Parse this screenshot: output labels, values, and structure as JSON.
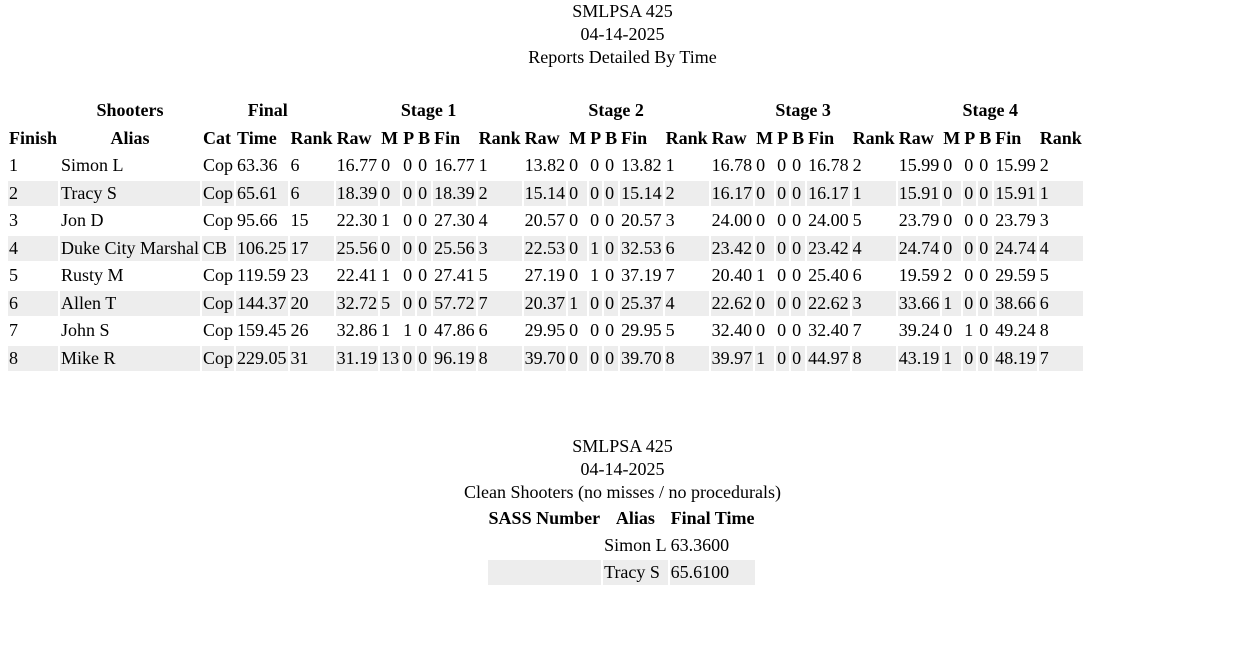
{
  "report": {
    "title": "SMLPSA 425",
    "date": "04-14-2025",
    "subtitle": "Reports Detailed By Time"
  },
  "results_table": {
    "group_headers": {
      "shooters": "Shooters",
      "final": "Final",
      "stages": [
        "Stage 1",
        "Stage 2",
        "Stage 3",
        "Stage 4"
      ]
    },
    "columns": {
      "finish": "Finish",
      "alias": "Alias",
      "cat": "Cat",
      "time": "Time",
      "rank": "Rank",
      "stage": [
        "Raw",
        "M",
        "P",
        "B",
        "Fin",
        "Rank"
      ]
    },
    "rows": [
      {
        "finish": "1",
        "alias": "Simon L",
        "cat": "Cop",
        "time": "63.36",
        "rank": "6",
        "stages": [
          [
            "16.77",
            "0",
            "0",
            "0",
            "16.77",
            "1"
          ],
          [
            "13.82",
            "0",
            "0",
            "0",
            "13.82",
            "1"
          ],
          [
            "16.78",
            "0",
            "0",
            "0",
            "16.78",
            "2"
          ],
          [
            "15.99",
            "0",
            "0",
            "0",
            "15.99",
            "2"
          ]
        ]
      },
      {
        "finish": "2",
        "alias": "Tracy S",
        "cat": "Cop",
        "time": "65.61",
        "rank": "6",
        "stages": [
          [
            "18.39",
            "0",
            "0",
            "0",
            "18.39",
            "2"
          ],
          [
            "15.14",
            "0",
            "0",
            "0",
            "15.14",
            "2"
          ],
          [
            "16.17",
            "0",
            "0",
            "0",
            "16.17",
            "1"
          ],
          [
            "15.91",
            "0",
            "0",
            "0",
            "15.91",
            "1"
          ]
        ]
      },
      {
        "finish": "3",
        "alias": "Jon D",
        "cat": "Cop",
        "time": "95.66",
        "rank": "15",
        "stages": [
          [
            "22.30",
            "1",
            "0",
            "0",
            "27.30",
            "4"
          ],
          [
            "20.57",
            "0",
            "0",
            "0",
            "20.57",
            "3"
          ],
          [
            "24.00",
            "0",
            "0",
            "0",
            "24.00",
            "5"
          ],
          [
            "23.79",
            "0",
            "0",
            "0",
            "23.79",
            "3"
          ]
        ]
      },
      {
        "finish": "4",
        "alias": "Duke City Marshal",
        "cat": "CB",
        "time": "106.25",
        "rank": "17",
        "stages": [
          [
            "25.56",
            "0",
            "0",
            "0",
            "25.56",
            "3"
          ],
          [
            "22.53",
            "0",
            "1",
            "0",
            "32.53",
            "6"
          ],
          [
            "23.42",
            "0",
            "0",
            "0",
            "23.42",
            "4"
          ],
          [
            "24.74",
            "0",
            "0",
            "0",
            "24.74",
            "4"
          ]
        ]
      },
      {
        "finish": "5",
        "alias": "Rusty M",
        "cat": "Cop",
        "time": "119.59",
        "rank": "23",
        "stages": [
          [
            "22.41",
            "1",
            "0",
            "0",
            "27.41",
            "5"
          ],
          [
            "27.19",
            "0",
            "1",
            "0",
            "37.19",
            "7"
          ],
          [
            "20.40",
            "1",
            "0",
            "0",
            "25.40",
            "6"
          ],
          [
            "19.59",
            "2",
            "0",
            "0",
            "29.59",
            "5"
          ]
        ]
      },
      {
        "finish": "6",
        "alias": "Allen T",
        "cat": "Cop",
        "time": "144.37",
        "rank": "20",
        "stages": [
          [
            "32.72",
            "5",
            "0",
            "0",
            "57.72",
            "7"
          ],
          [
            "20.37",
            "1",
            "0",
            "0",
            "25.37",
            "4"
          ],
          [
            "22.62",
            "0",
            "0",
            "0",
            "22.62",
            "3"
          ],
          [
            "33.66",
            "1",
            "0",
            "0",
            "38.66",
            "6"
          ]
        ]
      },
      {
        "finish": "7",
        "alias": "John S",
        "cat": "Cop",
        "time": "159.45",
        "rank": "26",
        "stages": [
          [
            "32.86",
            "1",
            "1",
            "0",
            "47.86",
            "6"
          ],
          [
            "29.95",
            "0",
            "0",
            "0",
            "29.95",
            "5"
          ],
          [
            "32.40",
            "0",
            "0",
            "0",
            "32.40",
            "7"
          ],
          [
            "39.24",
            "0",
            "1",
            "0",
            "49.24",
            "8"
          ]
        ]
      },
      {
        "finish": "8",
        "alias": "Mike R",
        "cat": "Cop",
        "time": "229.05",
        "rank": "31",
        "stages": [
          [
            "31.19",
            "13",
            "0",
            "0",
            "96.19",
            "8"
          ],
          [
            "39.70",
            "0",
            "0",
            "0",
            "39.70",
            "8"
          ],
          [
            "39.97",
            "1",
            "0",
            "0",
            "44.97",
            "8"
          ],
          [
            "43.19",
            "1",
            "0",
            "0",
            "48.19",
            "7"
          ]
        ]
      }
    ]
  },
  "clean": {
    "title": "SMLPSA 425",
    "date": "04-14-2025",
    "subtitle": "Clean Shooters (no misses / no procedurals)",
    "columns": [
      "SASS Number",
      "Alias",
      "Final Time"
    ],
    "rows": [
      {
        "sass": "",
        "alias": "Simon L",
        "final_time": "63.3600"
      },
      {
        "sass": "",
        "alias": "Tracy S",
        "final_time": "65.6100"
      }
    ]
  }
}
